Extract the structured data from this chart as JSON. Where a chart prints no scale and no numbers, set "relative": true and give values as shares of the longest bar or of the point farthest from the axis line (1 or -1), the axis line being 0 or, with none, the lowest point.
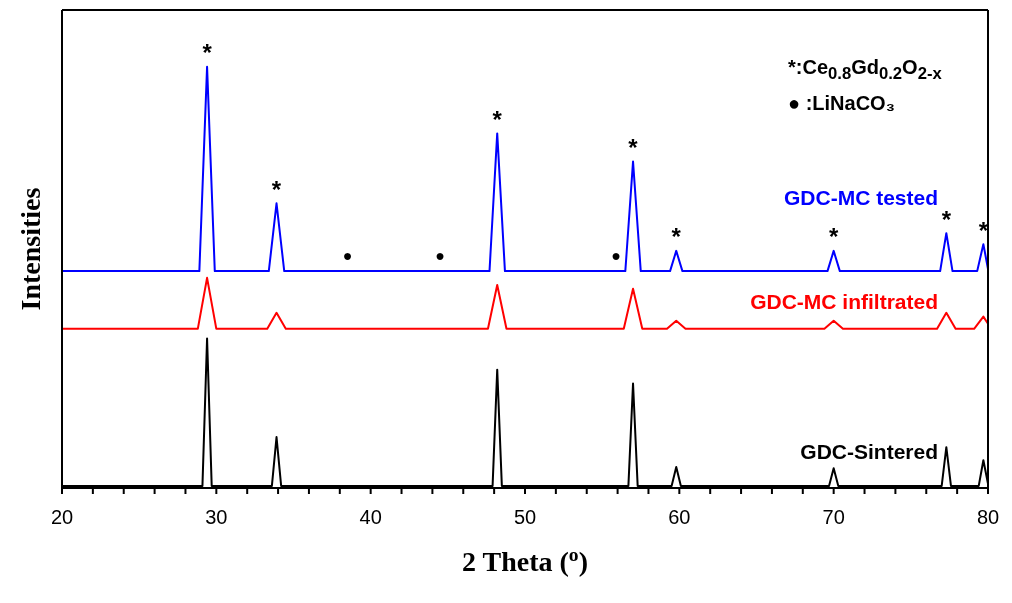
{
  "chart_data": {
    "type": "line",
    "relative": true,
    "xlabel": "2 Theta ($^{o}$)",
    "ylabel": "Intensities",
    "xlim": [
      20,
      80
    ],
    "xticks": [
      20,
      {
        "value": 22,
        "label": null
      },
      {
        "value": 24,
        "label": null
      },
      {
        "value": 26,
        "label": null
      },
      {
        "value": 28,
        "label": null
      },
      30,
      {
        "value": 32,
        "label": null
      },
      {
        "value": 34,
        "label": null
      },
      {
        "value": 36,
        "label": null
      },
      {
        "value": 38,
        "label": null
      },
      40,
      {
        "value": 42,
        "label": null
      },
      {
        "value": 44,
        "label": null
      },
      {
        "value": 46,
        "label": null
      },
      {
        "value": 48,
        "label": null
      },
      50,
      {
        "value": 52,
        "label": null
      },
      {
        "value": 54,
        "label": null
      },
      {
        "value": 56,
        "label": null
      },
      {
        "value": 58,
        "label": null
      },
      60,
      {
        "value": 62,
        "label": null
      },
      {
        "value": 64,
        "label": null
      },
      {
        "value": 66,
        "label": null
      },
      {
        "value": 68,
        "label": null
      },
      70,
      {
        "value": 72,
        "label": null
      },
      {
        "value": 74,
        "label": null
      },
      {
        "value": 76,
        "label": null
      },
      {
        "value": 78,
        "label": null
      },
      80
    ],
    "series": [
      {
        "name": "GDC-MC tested",
        "color": "#0000ff",
        "x": [
          20,
          28.9,
          29.4,
          29.9,
          33.4,
          33.9,
          34.4,
          47.7,
          48.2,
          48.7,
          56.5,
          57.0,
          57.5,
          59.4,
          59.8,
          60.2,
          69.6,
          70.0,
          70.4,
          76.9,
          77.3,
          77.7,
          79.3,
          79.7,
          80
        ],
        "values": [
          0.515,
          0.515,
          1.0,
          0.515,
          0.515,
          0.676,
          0.515,
          0.515,
          0.842,
          0.515,
          0.515,
          0.775,
          0.515,
          0.515,
          0.563,
          0.515,
          0.515,
          0.563,
          0.515,
          0.515,
          0.605,
          0.515,
          0.515,
          0.579,
          0.52
        ]
      },
      {
        "name": "GDC-MC infiltrated",
        "color": "#ff0000",
        "x": [
          20,
          28.8,
          29.4,
          30.0,
          33.3,
          33.9,
          34.5,
          47.6,
          48.2,
          48.8,
          56.4,
          57.0,
          57.6,
          59.2,
          59.8,
          60.4,
          69.4,
          70.0,
          70.6,
          76.7,
          77.3,
          77.9,
          79.1,
          79.7,
          80
        ],
        "values": [
          0.378,
          0.378,
          0.499,
          0.378,
          0.378,
          0.416,
          0.378,
          0.378,
          0.482,
          0.378,
          0.378,
          0.473,
          0.378,
          0.378,
          0.397,
          0.378,
          0.378,
          0.397,
          0.378,
          0.378,
          0.416,
          0.378,
          0.378,
          0.407,
          0.39
        ]
      },
      {
        "name": "GDC-Sintered",
        "color": "#000000",
        "x": [
          20,
          29.1,
          29.4,
          29.7,
          33.6,
          33.9,
          34.2,
          47.9,
          48.2,
          48.5,
          56.7,
          57.0,
          57.3,
          59.5,
          59.8,
          60.1,
          69.7,
          70.0,
          70.3,
          77.0,
          77.3,
          77.6,
          79.4,
          79.7,
          80
        ],
        "values": [
          0.005,
          0.005,
          0.355,
          0.005,
          0.005,
          0.121,
          0.005,
          0.005,
          0.281,
          0.005,
          0.005,
          0.248,
          0.005,
          0.005,
          0.05,
          0.005,
          0.005,
          0.047,
          0.005,
          0.005,
          0.097,
          0.005,
          0.005,
          0.066,
          0.01
        ]
      }
    ],
    "annotations": [
      "*:Ce$_{0.8}$Gd$_{0.2}$O$_{2-x}$",
      "● :LiNaCO₃",
      {
        "text": "*",
        "x": 29.4,
        "y": 1.0
      },
      {
        "text": "*",
        "x": 33.9,
        "y": 0.676
      },
      {
        "text": "*",
        "x": 48.2,
        "y": 0.842
      },
      {
        "text": "*",
        "x": 57.0,
        "y": 0.775
      },
      {
        "text": "*",
        "x": 59.8,
        "y": 0.563
      },
      {
        "text": "*",
        "x": 70.0,
        "y": 0.563
      },
      {
        "text": "*",
        "x": 77.3,
        "y": 0.605
      },
      {
        "text": "*",
        "x": 79.7,
        "y": 0.579
      },
      {
        "text": "●",
        "x": 38.5,
        "y": 0.515
      },
      {
        "text": "●",
        "x": 44.5,
        "y": 0.515
      },
      {
        "text": "●",
        "x": 55.9,
        "y": 0.515
      }
    ]
  }
}
